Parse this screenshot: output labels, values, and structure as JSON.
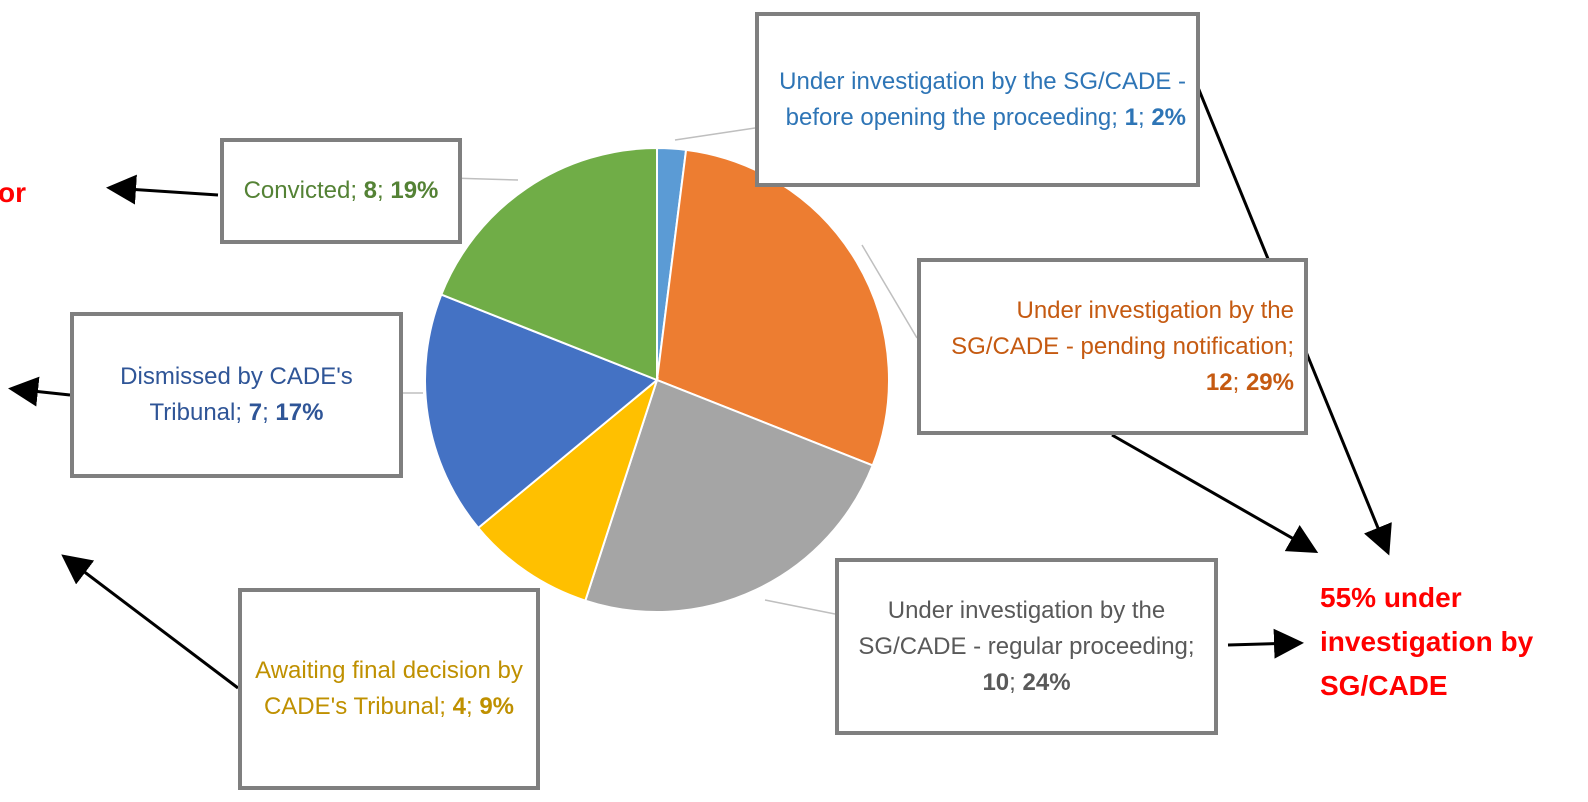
{
  "chart_data": {
    "type": "pie",
    "categories": [
      "Under investigation by the SG/CADE - before opening the proceeding",
      "Under investigation by the SG/CADE - pending notification",
      "Under investigation by the SG/CADE - regular proceeding",
      "Awaiting final decision by CADE's Tribunal",
      "Dismissed by CADE's Tribunal",
      "Convicted"
    ],
    "counts": [
      1,
      12,
      10,
      4,
      7,
      8
    ],
    "values": [
      2,
      29,
      24,
      9,
      17,
      19
    ],
    "value_labels": [
      "2%",
      "29%",
      "24%",
      "9%",
      "17%",
      "19%"
    ],
    "label_separator": ";",
    "colors": [
      "#5b9bd5",
      "#ed7d31",
      "#a5a5a5",
      "#ffc000",
      "#4472c4",
      "#70ad47"
    ],
    "label_colors": [
      "#2e75b6",
      "#c55a11",
      "#595959",
      "#bf9000",
      "#2f5597",
      "#548235"
    ],
    "annotations": [
      "55% under investigation by SG/CADE",
      "or"
    ]
  }
}
